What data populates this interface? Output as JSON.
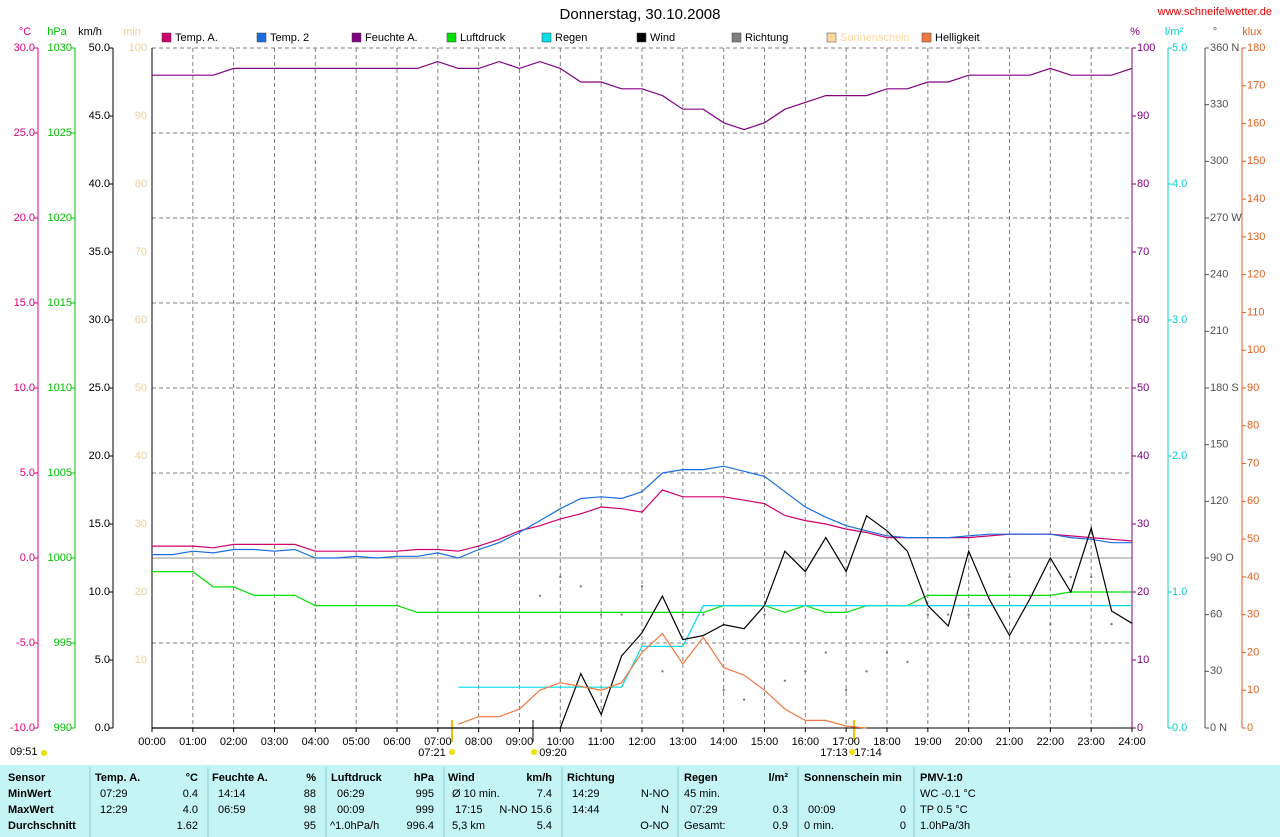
{
  "chart_data": {
    "type": "line",
    "title": "Donnerstag, 30.10.2008",
    "source": "www.schneifelwetter.de",
    "xlim": [
      0,
      24
    ],
    "xticks": [
      {
        "value": 0,
        "label": "00:00"
      },
      {
        "value": 1,
        "label": "01:00"
      },
      {
        "value": 2,
        "label": "02:00"
      },
      {
        "value": 3,
        "label": "03:00"
      },
      {
        "value": 4,
        "label": "04:00"
      },
      {
        "value": 5,
        "label": "05:00"
      },
      {
        "value": 6,
        "label": "06:00"
      },
      {
        "value": 7,
        "label": "07:00"
      },
      {
        "value": 8,
        "label": "08:00"
      },
      {
        "value": 9,
        "label": "09:00"
      },
      {
        "value": 10,
        "label": "10:00"
      },
      {
        "value": 11,
        "label": "11:00"
      },
      {
        "value": 12,
        "label": "12:00"
      },
      {
        "value": 13,
        "label": "13:00"
      },
      {
        "value": 14,
        "label": "14:00"
      },
      {
        "value": 15,
        "label": "15:00"
      },
      {
        "value": 16,
        "label": "16:00"
      },
      {
        "value": 17,
        "label": "17:00"
      },
      {
        "value": 18,
        "label": "18:00"
      },
      {
        "value": 19,
        "label": "19:00"
      },
      {
        "value": 20,
        "label": "20:00"
      },
      {
        "value": 21,
        "label": "21:00"
      },
      {
        "value": 22,
        "label": "22:00"
      },
      {
        "value": 23,
        "label": "23:00"
      },
      {
        "value": 24,
        "label": "24:00"
      }
    ],
    "grid": true,
    "axes": {
      "c": {
        "unit": "°C",
        "color": "#e0007f",
        "lim": [
          -10,
          30
        ],
        "ticks": [
          {
            "value": -10,
            "label": "-10.0"
          },
          {
            "value": -5,
            "label": "-5.0"
          },
          {
            "value": 0,
            "label": "0.0"
          },
          {
            "value": 5,
            "label": "5.0"
          },
          {
            "value": 10,
            "label": "10.0"
          },
          {
            "value": 15,
            "label": "15.0"
          },
          {
            "value": 20,
            "label": "20.0"
          },
          {
            "value": 25,
            "label": "25.0"
          },
          {
            "value": 30,
            "label": "30.0"
          }
        ]
      },
      "hpa": {
        "unit": "hPa",
        "color": "#00c000",
        "lim": [
          990,
          1030
        ],
        "ticks": [
          990,
          995,
          1000,
          1005,
          1010,
          1015,
          1020,
          1025,
          1030
        ]
      },
      "kmh": {
        "unit": "km/h",
        "color": "#000000",
        "lim": [
          0,
          50
        ],
        "ticks": [
          {
            "value": 0,
            "label": "0.0"
          },
          {
            "value": 5,
            "label": "5.0"
          },
          {
            "value": 10,
            "label": "10.0"
          },
          {
            "value": 15,
            "label": "15.0"
          },
          {
            "value": 20,
            "label": "20.0"
          },
          {
            "value": 25,
            "label": "25.0"
          },
          {
            "value": 30,
            "label": "30.0"
          },
          {
            "value": 35,
            "label": "35.0"
          },
          {
            "value": 40,
            "label": "40.0"
          },
          {
            "value": 45,
            "label": "45.0"
          },
          {
            "value": 50,
            "label": "50.0"
          }
        ]
      },
      "min": {
        "unit": "min",
        "color": "#f0d098",
        "lim": [
          0,
          100
        ],
        "ticks": [
          10,
          20,
          30,
          40,
          50,
          60,
          70,
          80,
          90,
          100
        ]
      },
      "pct": {
        "unit": "%",
        "color": "#800080",
        "lim": [
          0,
          100
        ],
        "ticks": [
          0,
          10,
          20,
          30,
          40,
          50,
          60,
          70,
          80,
          90,
          100
        ]
      },
      "rain": {
        "unit": "l/m²",
        "color": "#00d0d0",
        "lim": [
          0,
          5
        ],
        "ticks": [
          {
            "value": 0,
            "label": "0.0"
          },
          {
            "value": 1,
            "label": "1.0"
          },
          {
            "value": 2,
            "label": "2.0"
          },
          {
            "value": 3,
            "label": "3.0"
          },
          {
            "value": 4,
            "label": "4.0"
          },
          {
            "value": 5,
            "label": "5.0"
          }
        ]
      },
      "dir": {
        "unit": "°",
        "color": "#505050",
        "lim": [
          0,
          360
        ],
        "ticks": [
          {
            "value": 0,
            "label": "0 N"
          },
          30,
          60,
          {
            "value": 90,
            "label": "90 O"
          },
          120,
          150,
          {
            "value": 180,
            "label": "180 S"
          },
          210,
          240,
          {
            "value": 270,
            "label": "270 W"
          },
          300,
          330,
          {
            "value": 360,
            "label": "360 N"
          }
        ]
      },
      "klux": {
        "unit": "klux",
        "color": "#e06020",
        "lim": [
          0,
          180
        ],
        "ticks": [
          0,
          10,
          20,
          30,
          40,
          50,
          60,
          70,
          80,
          90,
          100,
          110,
          120,
          130,
          140,
          150,
          160,
          170,
          180
        ]
      }
    },
    "x": [
      0,
      0.5,
      1,
      1.5,
      2,
      2.5,
      3,
      3.5,
      4,
      4.5,
      5,
      5.5,
      6,
      6.5,
      7,
      7.5,
      8,
      8.5,
      9,
      9.5,
      10,
      10.5,
      11,
      11.5,
      12,
      12.5,
      13,
      13.5,
      14,
      14.5,
      15,
      15.5,
      16,
      16.5,
      17,
      17.5,
      18,
      18.5,
      19,
      19.5,
      20,
      20.5,
      21,
      21.5,
      22,
      22.5,
      23,
      23.5,
      24
    ],
    "series": [
      {
        "name": "Temp. A.",
        "color": "#d0006c",
        "axis": "c",
        "values": [
          0.7,
          0.7,
          0.7,
          0.6,
          0.8,
          0.8,
          0.8,
          0.8,
          0.4,
          0.4,
          0.4,
          0.4,
          0.4,
          0.5,
          0.5,
          0.4,
          0.7,
          1.1,
          1.6,
          1.9,
          2.3,
          2.6,
          3.0,
          2.9,
          2.7,
          4.0,
          3.6,
          3.6,
          3.6,
          3.4,
          3.2,
          2.5,
          2.2,
          2.0,
          1.7,
          1.5,
          1.2,
          1.2,
          1.2,
          1.2,
          1.2,
          1.3,
          1.4,
          1.4,
          1.4,
          1.3,
          1.2,
          1.1,
          1.0
        ]
      },
      {
        "name": "Temp. 2",
        "color": "#1a6ee0",
        "axis": "c",
        "values": [
          0.2,
          0.2,
          0.4,
          0.3,
          0.5,
          0.5,
          0.4,
          0.5,
          0.0,
          0.0,
          0.1,
          0.0,
          0.1,
          0.1,
          0.3,
          0.0,
          0.5,
          0.9,
          1.5,
          2.2,
          2.9,
          3.5,
          3.6,
          3.5,
          3.9,
          5.0,
          5.2,
          5.2,
          5.4,
          5.1,
          4.8,
          3.9,
          3.0,
          2.4,
          1.9,
          1.6,
          1.3,
          1.2,
          1.2,
          1.2,
          1.3,
          1.4,
          1.4,
          1.4,
          1.4,
          1.2,
          1.1,
          0.9,
          0.9
        ]
      },
      {
        "name": "Feuchte A.",
        "color": "#800080",
        "axis": "pct",
        "values": [
          96,
          96,
          96,
          96,
          97,
          97,
          97,
          97,
          97,
          97,
          97,
          97,
          97,
          97,
          98,
          97,
          97,
          98,
          97,
          98,
          97,
          95,
          95,
          94,
          94,
          93,
          91,
          91,
          89,
          88,
          89,
          91,
          92,
          93,
          93,
          93,
          94,
          94,
          95,
          95,
          96,
          96,
          96,
          96,
          97,
          96,
          96,
          96,
          97
        ]
      },
      {
        "name": "Luftdruck",
        "color": "#00e000",
        "axis": "hpa",
        "values": [
          999.2,
          999.2,
          999.2,
          998.3,
          998.3,
          997.8,
          997.8,
          997.8,
          997.2,
          997.2,
          997.2,
          997.2,
          997.2,
          996.8,
          996.8,
          996.8,
          996.8,
          996.8,
          996.8,
          996.8,
          996.8,
          996.8,
          996.8,
          996.8,
          996.8,
          996.8,
          996.8,
          996.8,
          997.2,
          997.2,
          997.2,
          996.8,
          997.2,
          996.8,
          996.8,
          997.2,
          997.2,
          997.2,
          997.8,
          997.8,
          997.8,
          997.8,
          997.8,
          997.8,
          997.8,
          998.0,
          998.0,
          998.0,
          998.0
        ]
      },
      {
        "name": "Regen",
        "color": "#00e0e8",
        "axis": "rain",
        "values": [
          null,
          null,
          null,
          null,
          null,
          null,
          null,
          null,
          null,
          null,
          null,
          null,
          null,
          null,
          null,
          0.3,
          0.3,
          0.3,
          0.3,
          0.3,
          0.3,
          0.3,
          0.3,
          0.3,
          0.6,
          0.6,
          0.6,
          0.9,
          0.9,
          0.9,
          0.9,
          0.9,
          0.9,
          0.9,
          0.9,
          0.9,
          0.9,
          0.9,
          0.9,
          0.9,
          0.9,
          0.9,
          0.9,
          0.9,
          0.9,
          0.9,
          0.9,
          0.9,
          0.9
        ]
      },
      {
        "name": "Wind",
        "color": "#000000",
        "axis": "kmh",
        "values": [
          0,
          0,
          0,
          0,
          0,
          0,
          0,
          0,
          0,
          0,
          0,
          0,
          0,
          0,
          0,
          0,
          0,
          0,
          0,
          0,
          0,
          4.0,
          1.0,
          5.3,
          7.0,
          9.7,
          6.5,
          6.8,
          7.6,
          7.3,
          9.0,
          13.0,
          11.5,
          14.0,
          11.5,
          15.6,
          14.5,
          13.0,
          9.0,
          7.5,
          13.0,
          9.5,
          6.8,
          9.5,
          12.5,
          10.0,
          14.7,
          8.6,
          7.7
        ]
      },
      {
        "name": "Richtung",
        "color": "#808080",
        "axis": "dir",
        "style": "dots",
        "values": [
          null,
          null,
          null,
          null,
          null,
          null,
          null,
          null,
          null,
          null,
          null,
          null,
          null,
          null,
          null,
          null,
          null,
          null,
          null,
          70,
          80,
          75,
          60,
          60,
          75,
          30,
          60,
          60,
          20,
          15,
          60,
          25,
          30,
          40,
          20,
          30,
          40,
          35,
          60,
          60,
          60,
          70,
          80,
          70,
          55,
          80,
          80,
          55,
          null
        ]
      },
      {
        "name": "Sonnenschein",
        "color": "#ffd8a0",
        "axis": "min"
      },
      {
        "name": "Helligkeit",
        "color": "#f07840",
        "axis": "klux",
        "values": [
          null,
          null,
          null,
          null,
          null,
          null,
          null,
          null,
          null,
          null,
          null,
          null,
          null,
          null,
          null,
          1,
          3,
          3,
          5,
          10,
          12,
          11,
          10,
          12,
          20,
          25,
          17,
          24,
          16,
          14,
          10,
          5,
          2,
          2,
          0.5,
          0,
          null,
          null,
          null,
          null,
          null,
          null,
          null,
          null,
          null,
          null,
          null,
          null,
          null
        ]
      }
    ],
    "annotations": [
      "07:21",
      "09:20",
      "17:13",
      "17:14"
    ],
    "footer_time": "09:51"
  },
  "table": {
    "header": [
      "Sensor",
      "Temp. A.",
      "°C",
      "Feuchte A.",
      "%",
      "Luftdruck",
      "hPa",
      "Wind",
      "km/h",
      "Richtung",
      "Regen",
      "l/m²",
      "Sonnenschein min",
      "PMV-1:0"
    ],
    "rows": [
      [
        "MinWert",
        "07:29",
        "0.4",
        "14:14",
        "88",
        "06:29",
        "995",
        "Ø 10 min.",
        "7.4",
        "14:29",
        "N-NO",
        "45 min.",
        "WC -0.1 °C"
      ],
      [
        "MaxWert",
        "12:29",
        "4.0",
        "06:59",
        "98",
        "00:09",
        "999",
        "17:15",
        "N-NO 15.6",
        "14:44",
        "N",
        "07:29",
        "0.3",
        "00:09",
        "0",
        "TP 0.5 °C"
      ],
      [
        "Durchschnitt",
        "1.62",
        "95",
        "^1.0hPa/h",
        "996.4",
        "5,3 km",
        "5.4",
        "O-NO",
        "Gesamt:",
        "0.9",
        "0 min.",
        "0",
        "1.0hPa/3h"
      ]
    ]
  }
}
